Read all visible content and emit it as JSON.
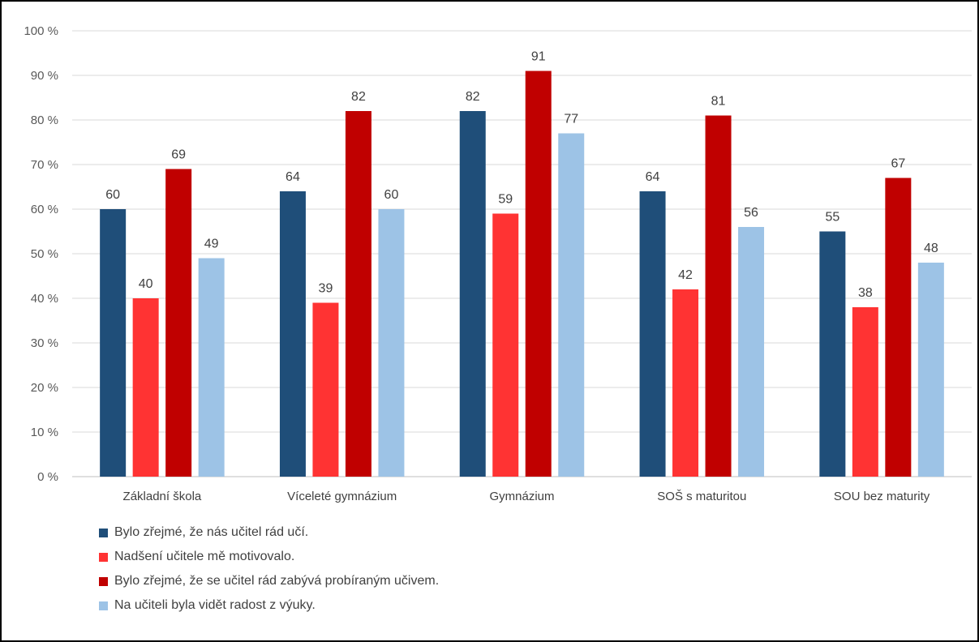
{
  "chart_data": {
    "type": "bar",
    "categories": [
      "Základní škola",
      "Víceleté gymnázium",
      "Gymnázium",
      "SOŠ s maturitou",
      "SOU bez maturity"
    ],
    "series": [
      {
        "name": "Bylo zřejmé, že nás učitel rád učí.",
        "color": "#1f4e79",
        "values": [
          60,
          64,
          82,
          64,
          55
        ]
      },
      {
        "name": "Nadšení učitele mě motivovalo.",
        "color": "#ff3333",
        "values": [
          40,
          39,
          59,
          42,
          38
        ]
      },
      {
        "name": "Bylo zřejmé, že se učitel rád zabývá probíraným učivem.",
        "color": "#c00000",
        "values": [
          69,
          82,
          91,
          81,
          67
        ]
      },
      {
        "name": "Na učiteli byla vidět radost z výuky.",
        "color": "#9dc3e6",
        "values": [
          49,
          60,
          77,
          56,
          48
        ]
      }
    ],
    "y_ticks": [
      "0 %",
      "10 %",
      "20 %",
      "30 %",
      "40 %",
      "50 %",
      "60 %",
      "70 %",
      "80 %",
      "90 %",
      "100 %"
    ],
    "ylim": [
      0,
      100
    ],
    "grid": true,
    "legend_position": "bottom-left",
    "title": "",
    "xlabel": "",
    "ylabel": ""
  }
}
